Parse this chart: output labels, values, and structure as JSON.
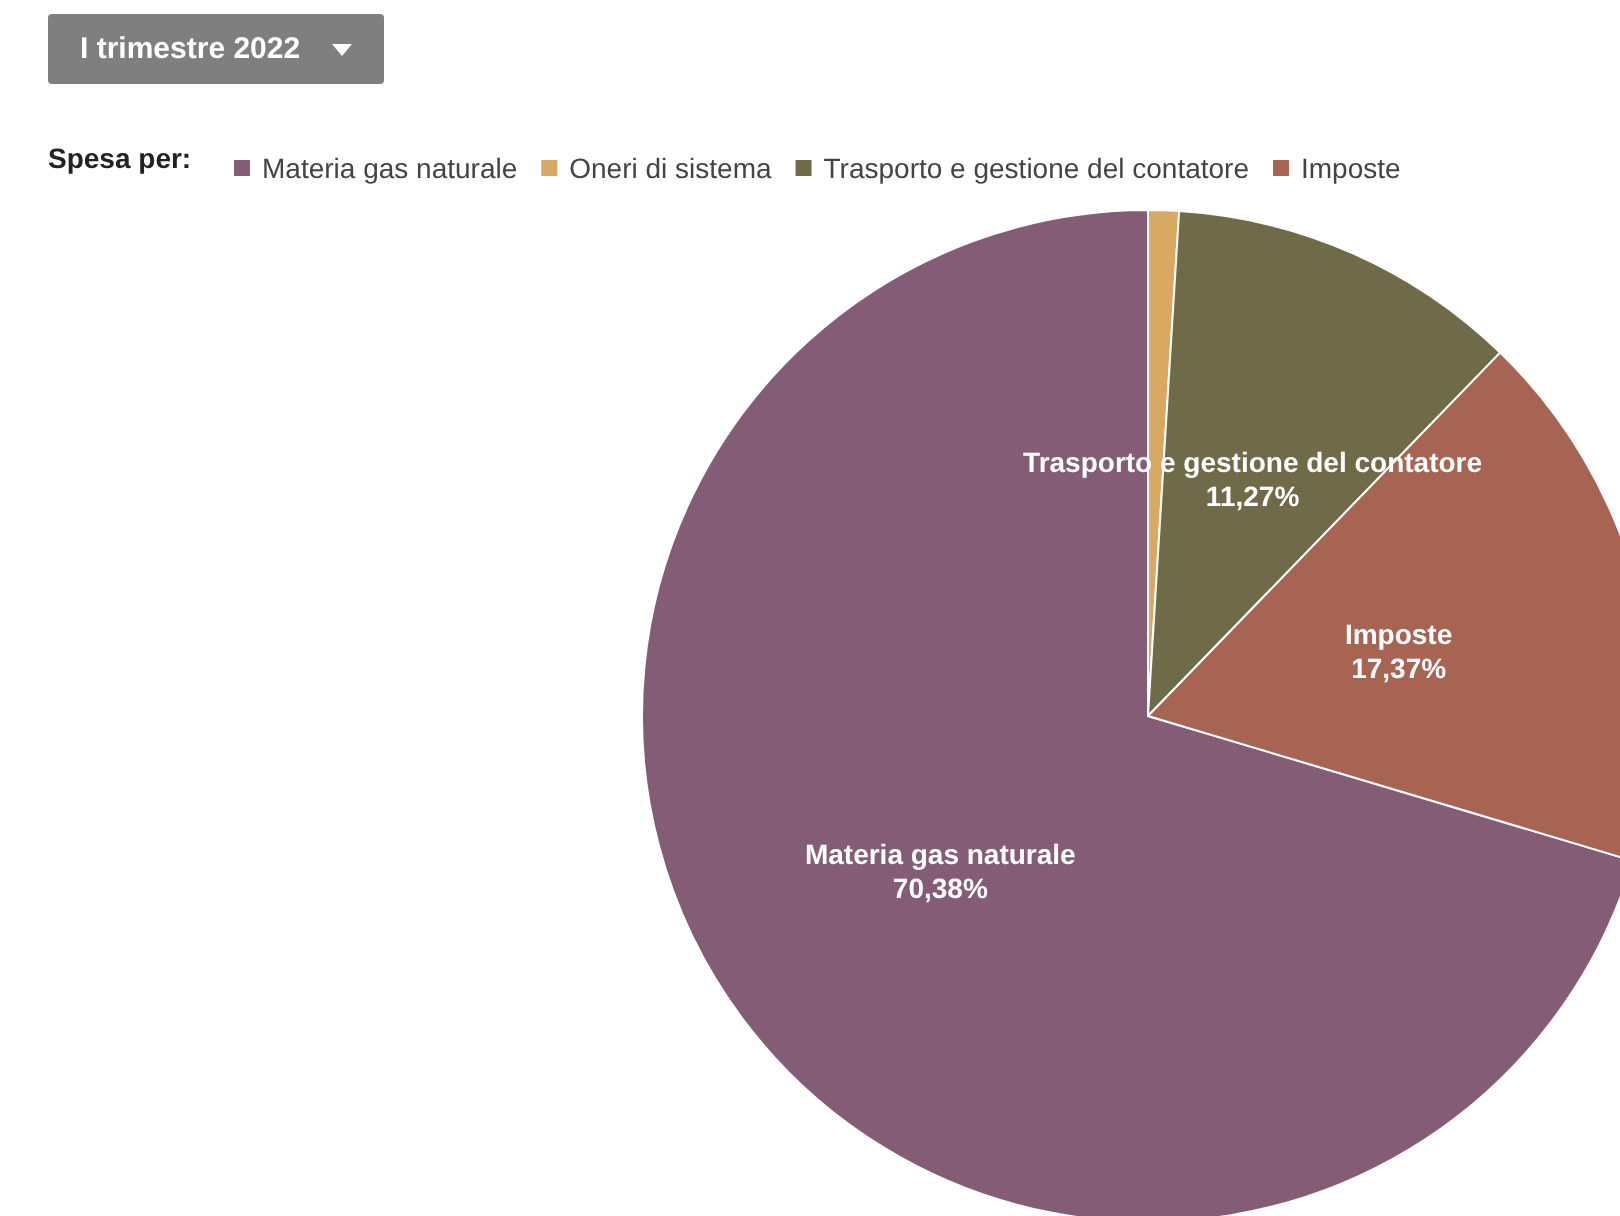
{
  "chart_data": {
    "type": "pie",
    "annotations": [
      "I trimestre 2022"
    ],
    "legend_title": "Spesa per:",
    "categories": [
      "Materia gas naturale",
      "Oneri di sistema",
      "Trasporto e gestione del contatore",
      "Imposte"
    ],
    "values": [
      70.38,
      0.98,
      11.27,
      17.37
    ],
    "value_labels": [
      "70,38%",
      null,
      "11,27%",
      "17,37%"
    ],
    "colors": [
      "#845c75",
      "#d9a862",
      "#6f6a48",
      "#a86453"
    ],
    "legend": "top left"
  }
}
